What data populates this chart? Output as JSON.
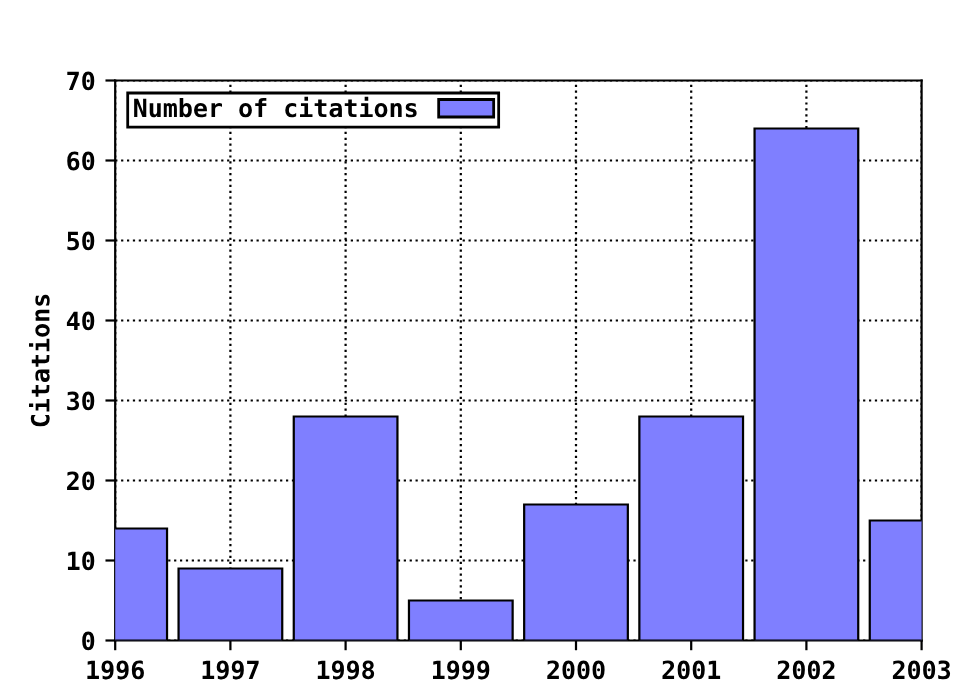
{
  "chart_data": {
    "type": "bar",
    "ylabel": "Citations",
    "x": [
      1996,
      1997,
      1998,
      1999,
      2000,
      2001,
      2002,
      2003
    ],
    "series": [
      {
        "name": "Number of citations",
        "color": "#7f7fff",
        "values": [
          14,
          9,
          28,
          5,
          17,
          28,
          64,
          15
        ]
      }
    ],
    "xlim": [
      1996,
      2003
    ],
    "xticks": [
      1996,
      1997,
      1998,
      1999,
      2000,
      2001,
      2002,
      2003
    ],
    "ylim": [
      0,
      70
    ],
    "yticks": [
      0,
      10,
      20,
      30,
      40,
      50,
      60,
      70
    ],
    "grid": true,
    "legend": "top left"
  }
}
